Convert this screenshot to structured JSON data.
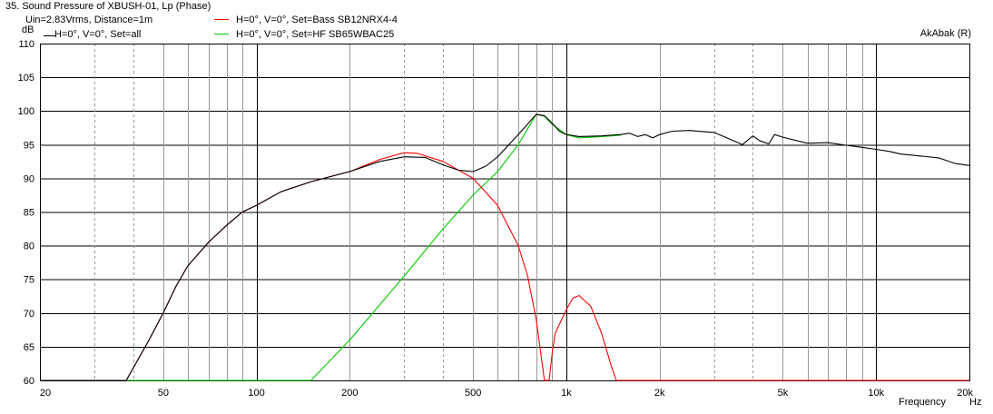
{
  "header": {
    "window_title": "35. Sound Pressure of XBUSH-01, Lp (Phase)",
    "info": "Uin=2.83Vrms, Distance=1m",
    "credit": "AkAbak (R)"
  },
  "legend": [
    {
      "label": "H=0°, V=0°, Set=all",
      "color": "#000000"
    },
    {
      "label": "H=0°, V=0°, Set=Bass SB12NRX4-4",
      "color": "#ff0000"
    },
    {
      "label": "H=0°, V=0°, Set=HF SB65WBAC25",
      "color": "#00cc00"
    }
  ],
  "chart_data": {
    "type": "line",
    "title": "35. Sound Pressure of XBUSH-01, Lp (Phase)",
    "xlabel": "Frequency",
    "xunit": "Hz",
    "yunit": "dB",
    "xscale": "log",
    "xlim": [
      20,
      20000
    ],
    "ylim": [
      60,
      110
    ],
    "grid": true,
    "x_ticks": [
      {
        "value": 20,
        "label": "20"
      },
      {
        "value": 50,
        "label": "50"
      },
      {
        "value": 100,
        "label": "100"
      },
      {
        "value": 200,
        "label": "200"
      },
      {
        "value": 500,
        "label": "500"
      },
      {
        "value": 1000,
        "label": "1k"
      },
      {
        "value": 2000,
        "label": "2k"
      },
      {
        "value": 5000,
        "label": "5k"
      },
      {
        "value": 10000,
        "label": "10k"
      },
      {
        "value": 20000,
        "label": "20k"
      }
    ],
    "y_ticks": [
      {
        "value": 60,
        "label": "60"
      },
      {
        "value": 65,
        "label": "65"
      },
      {
        "value": 70,
        "label": "70"
      },
      {
        "value": 75,
        "label": "75"
      },
      {
        "value": 80,
        "label": "80"
      },
      {
        "value": 85,
        "label": "85"
      },
      {
        "value": 90,
        "label": "90"
      },
      {
        "value": 95,
        "label": "95"
      },
      {
        "value": 100,
        "label": "100"
      },
      {
        "value": 105,
        "label": "105"
      },
      {
        "value": 110,
        "label": "110"
      }
    ],
    "series": [
      {
        "name": "H=0°, V=0°, Set=all",
        "color": "#000000",
        "points": [
          [
            20,
            60
          ],
          [
            38,
            60
          ],
          [
            45,
            66
          ],
          [
            50,
            70
          ],
          [
            55,
            74
          ],
          [
            60,
            77
          ],
          [
            70,
            80.5
          ],
          [
            80,
            83
          ],
          [
            90,
            85
          ],
          [
            100,
            86
          ],
          [
            120,
            88
          ],
          [
            150,
            89.5
          ],
          [
            200,
            91
          ],
          [
            250,
            92.5
          ],
          [
            300,
            93.2
          ],
          [
            350,
            93.1
          ],
          [
            400,
            92
          ],
          [
            450,
            91.2
          ],
          [
            500,
            91
          ],
          [
            550,
            91.8
          ],
          [
            600,
            93.2
          ],
          [
            700,
            96.5
          ],
          [
            800,
            99.5
          ],
          [
            850,
            99.3
          ],
          [
            900,
            98.2
          ],
          [
            950,
            97
          ],
          [
            1000,
            96.5
          ],
          [
            1100,
            96.2
          ],
          [
            1300,
            96.3
          ],
          [
            1500,
            96.5
          ],
          [
            1600,
            96.7
          ],
          [
            1700,
            96.2
          ],
          [
            1800,
            96.5
          ],
          [
            1900,
            96.0
          ],
          [
            2000,
            96.5
          ],
          [
            2200,
            97
          ],
          [
            2500,
            97.1
          ],
          [
            3000,
            96.8
          ],
          [
            3500,
            95.5
          ],
          [
            3700,
            95.0
          ],
          [
            4000,
            96.3
          ],
          [
            4200,
            95.6
          ],
          [
            4500,
            95.1
          ],
          [
            4700,
            96.5
          ],
          [
            5000,
            96.1
          ],
          [
            6000,
            95.2
          ],
          [
            7000,
            95.3
          ],
          [
            8000,
            94.9
          ],
          [
            9000,
            94.6
          ],
          [
            10000,
            94.3
          ],
          [
            11000,
            94.0
          ],
          [
            12000,
            93.6
          ],
          [
            14000,
            93.3
          ],
          [
            16000,
            93.0
          ],
          [
            18000,
            92.2
          ],
          [
            20000,
            91.9
          ]
        ]
      },
      {
        "name": "H=0°, V=0°, Set=Bass SB12NRX4-4",
        "color": "#ff0000",
        "points": [
          [
            20,
            60
          ],
          [
            38,
            60
          ],
          [
            45,
            66
          ],
          [
            50,
            70
          ],
          [
            55,
            74
          ],
          [
            60,
            77
          ],
          [
            70,
            80.5
          ],
          [
            80,
            83
          ],
          [
            90,
            85
          ],
          [
            100,
            86
          ],
          [
            120,
            88
          ],
          [
            150,
            89.5
          ],
          [
            200,
            91
          ],
          [
            250,
            92.8
          ],
          [
            300,
            93.8
          ],
          [
            330,
            93.7
          ],
          [
            400,
            92.5
          ],
          [
            500,
            90
          ],
          [
            600,
            86
          ],
          [
            700,
            80
          ],
          [
            750,
            75.5
          ],
          [
            800,
            69
          ],
          [
            830,
            63.5
          ],
          [
            850,
            60
          ],
          [
            880,
            60
          ],
          [
            900,
            64
          ],
          [
            920,
            67
          ],
          [
            1000,
            70.5
          ],
          [
            1050,
            72.2
          ],
          [
            1100,
            72.6
          ],
          [
            1200,
            71
          ],
          [
            1300,
            67
          ],
          [
            1400,
            62
          ],
          [
            1450,
            60
          ],
          [
            1600,
            60
          ],
          [
            20000,
            60
          ]
        ]
      },
      {
        "name": "H=0°, V=0°, Set=HF SB65WBAC25",
        "color": "#00cc00",
        "points": [
          [
            20,
            60
          ],
          [
            150,
            60
          ],
          [
            200,
            66
          ],
          [
            300,
            75.5
          ],
          [
            400,
            82.5
          ],
          [
            500,
            87.5
          ],
          [
            600,
            91
          ],
          [
            700,
            95
          ],
          [
            800,
            99.5
          ],
          [
            850,
            99.2
          ],
          [
            900,
            98
          ],
          [
            1000,
            96.5
          ],
          [
            1100,
            96.0
          ],
          [
            1300,
            96.2
          ],
          [
            1500,
            96.4
          ]
        ]
      }
    ]
  }
}
